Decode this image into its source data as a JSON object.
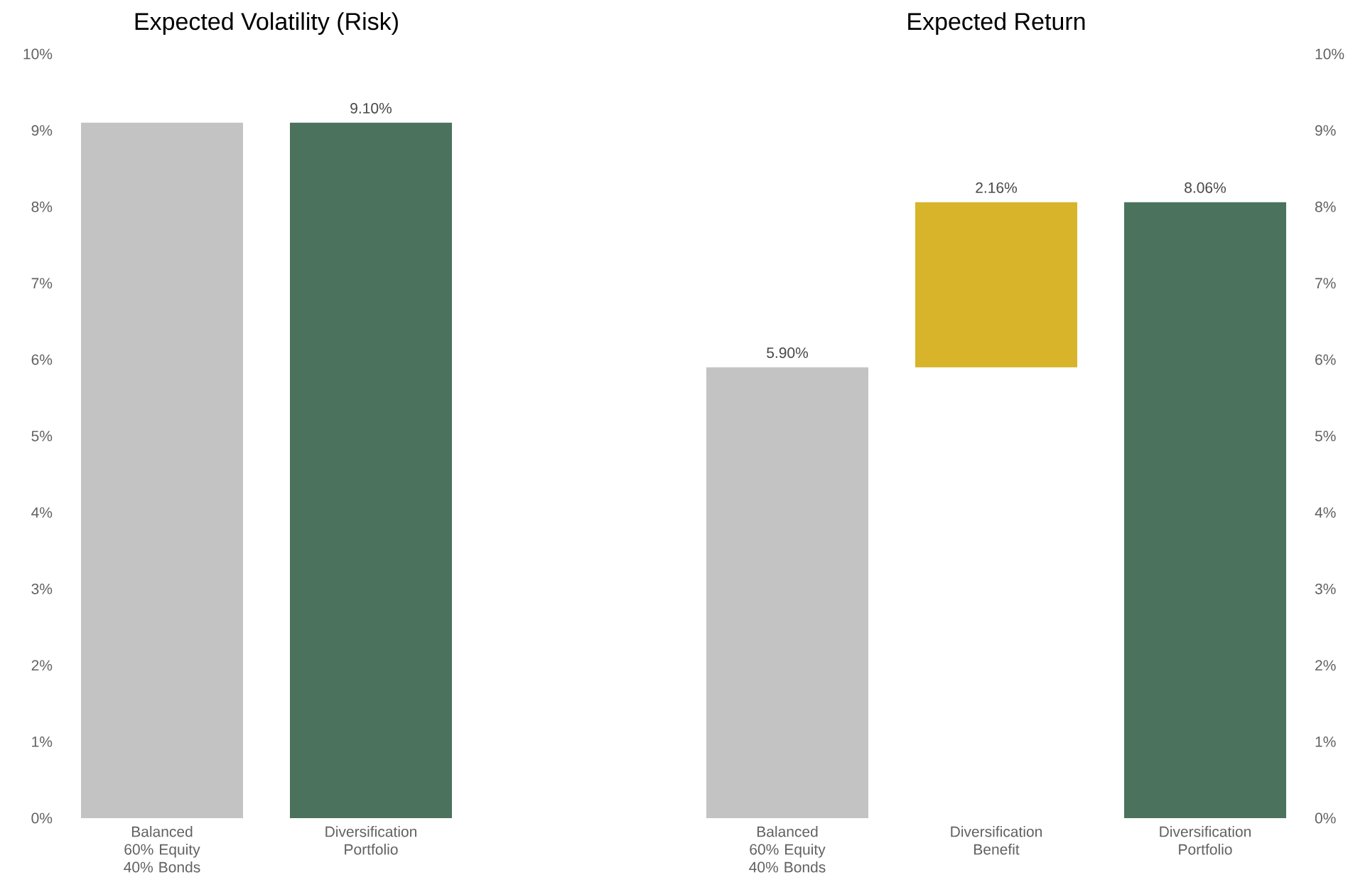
{
  "chart_data": [
    {
      "type": "bar",
      "title": "Expected Volatility (Risk)",
      "categories": [
        "Balanced 60% Equity 40% Bonds",
        "Diversification Portfolio"
      ],
      "series": [
        {
          "values": [
            9.1,
            9.1
          ]
        }
      ],
      "colors": [
        "#c3c3c3",
        "#4b725d"
      ],
      "value_labels": [
        null,
        "9.10%"
      ],
      "ylim": [
        0,
        10
      ],
      "yticks": [
        {
          "value": 0,
          "label": "0%"
        },
        {
          "value": 1,
          "label": "1%"
        },
        {
          "value": 2,
          "label": "2%"
        },
        {
          "value": 3,
          "label": "3%"
        },
        {
          "value": 4,
          "label": "4%"
        },
        {
          "value": 5,
          "label": "5%"
        },
        {
          "value": 6,
          "label": "6%"
        },
        {
          "value": 7,
          "label": "7%"
        },
        {
          "value": 8,
          "label": "8%"
        },
        {
          "value": 9,
          "label": "9%"
        },
        {
          "value": 10,
          "label": "10%"
        }
      ]
    },
    {
      "type": "bar",
      "title": "Expected Return",
      "categories": [
        "Balanced 60% Equity 40% Bonds",
        "Diversification Benefit",
        "Diversification Portfolio"
      ],
      "series": [
        {
          "axis": "y2",
          "values": [
            5.9,
            2.16,
            8.06
          ],
          "base": [
            0,
            5.9,
            0
          ]
        }
      ],
      "colors": [
        "#c3c3c3",
        "#d8b42a",
        "#4b725d"
      ],
      "value_labels": [
        "5.90%",
        "2.16%",
        "8.06%"
      ],
      "y2lim": [
        0,
        10
      ],
      "y2ticks": [
        {
          "value": 0,
          "label": "0%"
        },
        {
          "value": 1,
          "label": "1%"
        },
        {
          "value": 2,
          "label": "2%"
        },
        {
          "value": 3,
          "label": "3%"
        },
        {
          "value": 4,
          "label": "4%"
        },
        {
          "value": 5,
          "label": "5%"
        },
        {
          "value": 6,
          "label": "6%"
        },
        {
          "value": 7,
          "label": "7%"
        },
        {
          "value": 8,
          "label": "8%"
        },
        {
          "value": 9,
          "label": "9%"
        },
        {
          "value": 10,
          "label": "10%"
        }
      ]
    }
  ]
}
